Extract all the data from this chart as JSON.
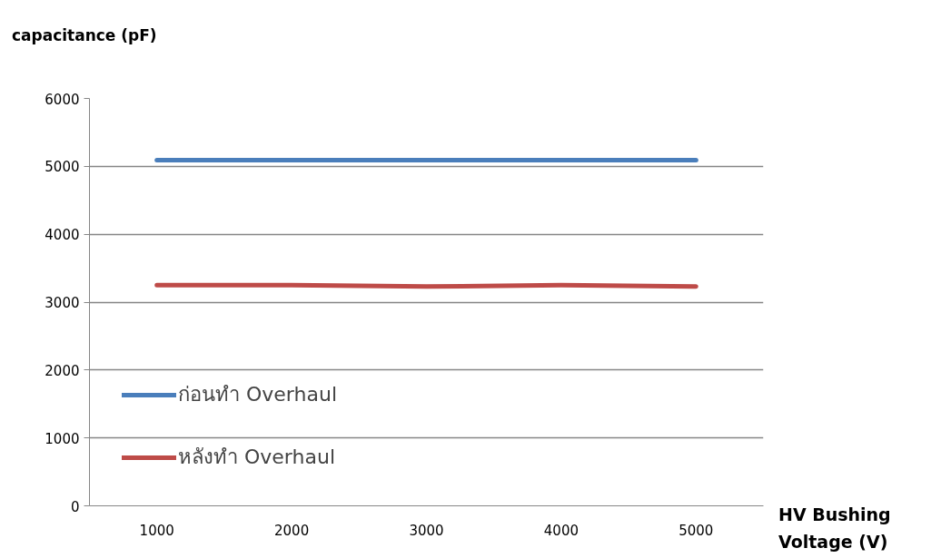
{
  "chart_data": {
    "type": "line",
    "ylabel": "capacitance (pF)",
    "xlabel": "HV Bushing Voltage (V)",
    "categories": [
      "1000",
      "2000",
      "3000",
      "4000",
      "5000"
    ],
    "series": [
      {
        "name": "ก่อนทำ Overhaul",
        "color": "#4a7ebb",
        "values": [
          5090,
          5090,
          5090,
          5090,
          5090
        ]
      },
      {
        "name": "หลังทำ Overhaul",
        "color": "#be4b48",
        "values": [
          3250,
          3250,
          3230,
          3250,
          3230
        ]
      }
    ],
    "ylim": [
      0,
      6000
    ],
    "yticks": [
      0,
      1000,
      2000,
      3000,
      4000,
      5000,
      6000
    ],
    "grid": "y",
    "legend": "bottom left",
    "marker": "none",
    "line_style": "solid"
  }
}
